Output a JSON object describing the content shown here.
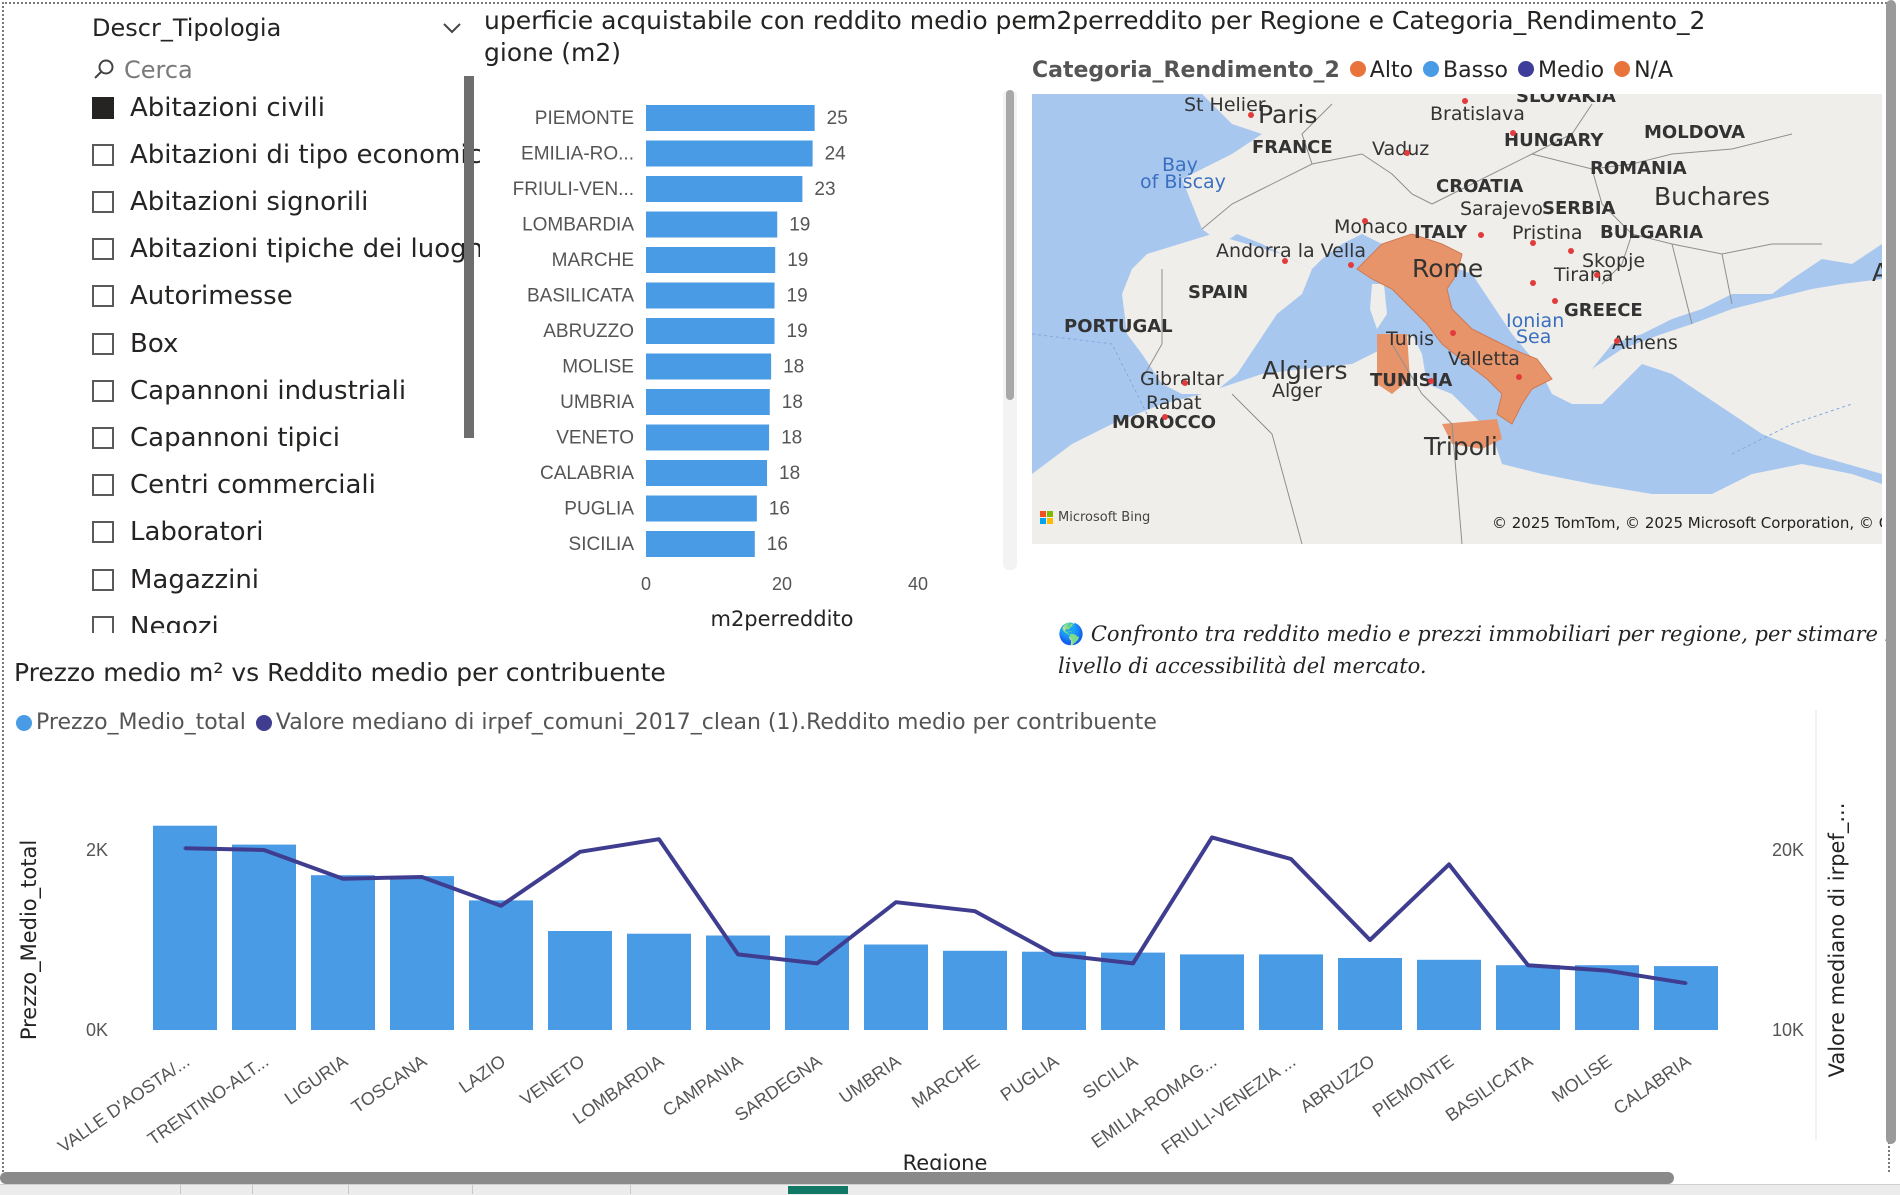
{
  "slicer": {
    "title": "Descr_Tipologia",
    "search_placeholder": "Cerca",
    "items": [
      {
        "label": "Abitazioni civili",
        "checked": true
      },
      {
        "label": "Abitazioni di tipo economico",
        "checked": false
      },
      {
        "label": "Abitazioni signorili",
        "checked": false
      },
      {
        "label": "Abitazioni tipiche dei luoghi",
        "checked": false
      },
      {
        "label": "Autorimesse",
        "checked": false
      },
      {
        "label": "Box",
        "checked": false
      },
      {
        "label": "Capannoni industriali",
        "checked": false
      },
      {
        "label": "Capannoni tipici",
        "checked": false
      },
      {
        "label": "Centri commerciali",
        "checked": false
      },
      {
        "label": "Laboratori",
        "checked": false
      },
      {
        "label": "Magazzini",
        "checked": false
      },
      {
        "label": "Negozi",
        "checked": false
      }
    ]
  },
  "bar_visual": {
    "title_line1": "uperficie acquistabile con reddito medio per",
    "title_line2": "gione (m2)"
  },
  "map_visual": {
    "title": "m2perreddito per Regione e Categoria_Rendimento_2",
    "legend_title": "Categoria_Rendimento_2",
    "legend": [
      {
        "label": "Alto",
        "color": "#e8743b"
      },
      {
        "label": "Basso",
        "color": "#4a9be6"
      },
      {
        "label": "Medio",
        "color": "#3f3d9a"
      },
      {
        "label": "N/A",
        "color": "#e8743b"
      }
    ],
    "highlight_color": "#e8946a",
    "labels": {
      "st_helier": "St Helier",
      "paris": "Paris",
      "france": "FRANCE",
      "bay": "Bay",
      "of_biscay": "of Biscay",
      "bratislava": "Bratislava",
      "slovakia": "SLOVAKIA",
      "moldova": "MOLDOVA",
      "hungary": "HUNGARY",
      "vaduz": "Vaduz",
      "romania": "ROMANIA",
      "croatia": "CROATIA",
      "sarajevo": "Sarajevo",
      "serbia": "SERBIA",
      "bucharest": "Buchares",
      "monaco": "Monaco",
      "italy": "ITALY",
      "pristina": "Pristina",
      "bulgaria": "BULGARIA",
      "andorra": "Andorra la Vella",
      "rome": "Rome",
      "skopje": "Skopje",
      "tirana": "Tirana",
      "spain": "SPAIN",
      "portugal": "PORTUGAL",
      "greece": "GREECE",
      "ionian": "Ionian",
      "sea": "Sea",
      "athens": "Athens",
      "tunis": "Tunis",
      "valletta": "Valletta",
      "algiers": "Algiers",
      "alger": "Alger",
      "tunisia": "TUNISIA",
      "gibraltar": "Gibraltar",
      "rabat": "Rabat",
      "morocco": "MOROCCO",
      "tripoli": "Tripoli",
      "a_cut": "A"
    },
    "attribution": "© 2025 TomTom, © 2025 Microsoft Corporation, © OpenStre",
    "bing": "Microsoft Bing"
  },
  "description": {
    "globe_icon": "globe-icon",
    "line1": "Confronto tra reddito medio e prezzi immobiliari per regione, per stimare la superfic",
    "line2": "livello di accessibilità del mercato."
  },
  "combo_visual": {
    "title": "Prezzo medio m² vs Reddito medio per contribuente"
  },
  "chart_data": [
    {
      "type": "bar",
      "orientation": "horizontal",
      "title": "uperficie acquistabile con reddito medio per gione (m2)",
      "xlabel": "m2perreddito",
      "ylabel": "",
      "xlim": [
        0,
        40
      ],
      "x_ticks": [
        "0",
        "20",
        "40"
      ],
      "categories": [
        "PIEMONTE",
        "EMILIA-RO...",
        "FRIULI-VEN...",
        "LOMBARDIA",
        "MARCHE",
        "BASILICATA",
        "ABRUZZO",
        "MOLISE",
        "UMBRIA",
        "VENETO",
        "CALABRIA",
        "PUGLIA",
        "SICILIA"
      ],
      "values": [
        24.8,
        24.5,
        23.0,
        19.3,
        19.0,
        18.9,
        18.9,
        18.4,
        18.2,
        18.1,
        17.8,
        16.3,
        16.0
      ],
      "data_labels": [
        "25",
        "24",
        "23",
        "19",
        "19",
        "19",
        "19",
        "18",
        "18",
        "18",
        "18",
        "16",
        "16"
      ],
      "color": "#4a9be6"
    },
    {
      "type": "bar",
      "title": "Prezzo medio m² vs Reddito medio per contribuente",
      "xlabel": "Regione",
      "ylabel": "Prezzo_Medio_total",
      "y2label": "Valore mediano di irpef_...",
      "ylim": [
        0,
        2500
      ],
      "y2lim": [
        10000,
        21000
      ],
      "y_ticks": [
        {
          "v": 0,
          "label": "0K"
        },
        {
          "v": 2000,
          "label": "2K"
        }
      ],
      "y2_ticks": [
        {
          "v": 10000,
          "label": "10K"
        },
        {
          "v": 20000,
          "label": "20K"
        }
      ],
      "categories": [
        "VALLE D'AOSTA/...",
        "TRENTINO-ALT...",
        "LIGURIA",
        "TOSCANA",
        "LAZIO",
        "VENETO",
        "LOMBARDIA",
        "CAMPANIA",
        "SARDEGNA",
        "UMBRIA",
        "MARCHE",
        "PUGLIA",
        "SICILIA",
        "EMILIA-ROMAG...",
        "FRIULI-VENEZIA ...",
        "ABRUZZO",
        "PIEMONTE",
        "BASILICATA",
        "MOLISE",
        "CALABRIA"
      ],
      "series": [
        {
          "name": "Prezzo_Medio_total",
          "kind": "bar",
          "axis": "left",
          "color": "#4a9be6",
          "values": [
            2270,
            2060,
            1720,
            1710,
            1440,
            1100,
            1070,
            1050,
            1050,
            950,
            880,
            870,
            860,
            840,
            840,
            800,
            780,
            720,
            720,
            710
          ]
        },
        {
          "name": "Valore mediano di irpef_comuni_2017_clean (1).Reddito medio per contribuente",
          "kind": "line",
          "axis": "right",
          "color": "#3f3d8f",
          "values": [
            20100,
            20000,
            18400,
            18500,
            16900,
            19900,
            20600,
            14200,
            13700,
            17100,
            16600,
            14200,
            13700,
            20700,
            19500,
            15000,
            19200,
            13600,
            13300,
            12600
          ]
        }
      ]
    }
  ]
}
